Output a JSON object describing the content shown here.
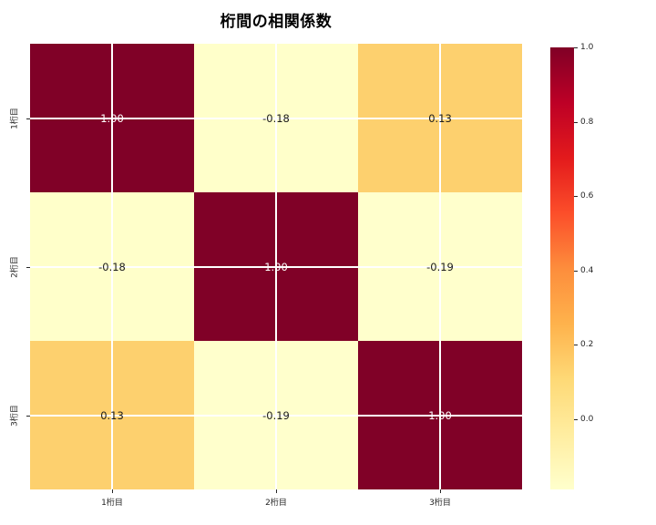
{
  "figure": {
    "background": "#ffffff"
  },
  "chart_data": {
    "type": "heatmap",
    "title": "桁間の相関係数",
    "x_labels": [
      "1桁目",
      "2桁目",
      "3桁目"
    ],
    "y_labels": [
      "1桁目",
      "2桁目",
      "3桁目"
    ],
    "matrix": [
      [
        1.0,
        -0.18,
        0.13
      ],
      [
        -0.18,
        1.0,
        -0.19
      ],
      [
        0.13,
        -0.19,
        1.0
      ]
    ],
    "cell_labels": [
      [
        "1.00",
        "-0.18",
        "0.13"
      ],
      [
        "-0.18",
        "1.00",
        "-0.19"
      ],
      [
        "0.13",
        "-0.19",
        "1.00"
      ]
    ],
    "cell_colors": [
      [
        "#800127",
        "#ffffca",
        "#fdd06e"
      ],
      [
        "#ffffca",
        "#800127",
        "#ffffcc"
      ],
      [
        "#fdd06e",
        "#ffffcc",
        "#800127"
      ]
    ],
    "cell_text_colors": [
      [
        "#ffffff",
        "#1a1a1a",
        "#1a1a1a"
      ],
      [
        "#1a1a1a",
        "#ffffff",
        "#1a1a1a"
      ],
      [
        "#1a1a1a",
        "#1a1a1a",
        "#ffffff"
      ]
    ],
    "colormap": "YlOrRd",
    "vmin": -0.19,
    "vmax": 1.0,
    "grid": true,
    "grid_color": "#ffffff",
    "legend_position": "right",
    "colorbar": {
      "tick_labels": [
        "1.0",
        "0.8",
        "0.6",
        "0.4",
        "0.2",
        "0.0"
      ],
      "tick_values": [
        1.0,
        0.8,
        0.6,
        0.4,
        0.2,
        0.0
      ],
      "gradient_top_to_bottom": [
        "#800026",
        "#bd0026",
        "#e31a1c",
        "#fc4e2a",
        "#fd8d3c",
        "#feb24c",
        "#fed976",
        "#ffeda0",
        "#ffffcc"
      ]
    }
  }
}
